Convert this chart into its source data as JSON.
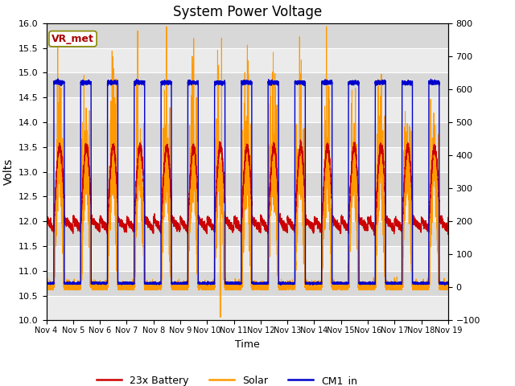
{
  "title": "System Power Voltage",
  "xlabel": "Time",
  "ylabel_left": "Volts",
  "ylim_left": [
    10.0,
    16.0
  ],
  "ylim_right": [
    -100,
    800
  ],
  "xtick_labels": [
    "Nov 4",
    "Nov 5",
    "Nov 6",
    "Nov 7",
    "Nov 8",
    "Nov 9",
    "Nov 10",
    "Nov 11",
    "Nov 12",
    "Nov 13",
    "Nov 14",
    "Nov 15",
    "Nov 16",
    "Nov 17",
    "Nov 18",
    "Nov 19"
  ],
  "legend_entries": [
    "23x Battery",
    "Solar",
    "CM1_in"
  ],
  "legend_colors": [
    "#cc0000",
    "#ff9900",
    "#0000cc"
  ],
  "annotation_text": "VR_met",
  "annotation_color": "#aa0000",
  "line_color_battery": "#cc0000",
  "line_color_solar": "#ff9900",
  "line_color_cm1": "#0000cc",
  "bg_plot": "#e8e8e8",
  "bg_band_light": "#ebebeb",
  "bg_band_dark": "#d8d8d8",
  "seed": 42
}
